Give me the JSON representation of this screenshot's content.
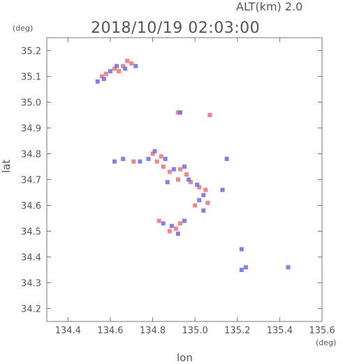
{
  "chart_data": {
    "type": "scatter",
    "altitude_label": "ALT(km)  2.0",
    "title": "2018/10/19 02:03:00",
    "xlabel": "lon",
    "ylabel": "lat",
    "x_unit": "(deg)",
    "y_unit": "(deg)",
    "xlim": [
      134.3,
      135.6
    ],
    "ylim": [
      34.15,
      35.25
    ],
    "xticks": [
      134.4,
      134.6,
      134.8,
      135.0,
      135.2,
      135.4,
      135.6
    ],
    "yticks": [
      34.2,
      34.3,
      34.4,
      34.5,
      34.6,
      34.7,
      34.8,
      34.9,
      35.0,
      35.1,
      35.2
    ],
    "grid": false,
    "series": [
      {
        "color": "#f07070",
        "points": [
          [
            134.56,
            35.1
          ],
          [
            134.58,
            35.11
          ],
          [
            134.62,
            35.13
          ],
          [
            134.66,
            35.14
          ],
          [
            134.68,
            35.16
          ],
          [
            134.7,
            35.15
          ],
          [
            134.64,
            35.12
          ],
          [
            134.71,
            34.77
          ],
          [
            134.8,
            34.8
          ],
          [
            134.82,
            34.77
          ],
          [
            134.85,
            34.75
          ],
          [
            134.88,
            34.73
          ],
          [
            134.93,
            34.74
          ],
          [
            134.96,
            34.72
          ],
          [
            134.98,
            34.69
          ],
          [
            135.02,
            34.67
          ],
          [
            135.05,
            34.66
          ],
          [
            134.92,
            34.7
          ],
          [
            134.84,
            34.79
          ],
          [
            134.83,
            34.54
          ],
          [
            134.88,
            34.5
          ],
          [
            134.91,
            34.51
          ],
          [
            134.93,
            34.53
          ],
          [
            135.06,
            34.61
          ],
          [
            135.0,
            34.6
          ],
          [
            135.07,
            34.95
          ],
          [
            134.92,
            34.96
          ]
        ]
      },
      {
        "color": "#6a6af0",
        "points": [
          [
            134.54,
            35.08
          ],
          [
            134.6,
            35.12
          ],
          [
            134.63,
            35.14
          ],
          [
            134.67,
            35.13
          ],
          [
            134.72,
            35.14
          ],
          [
            134.57,
            35.09
          ],
          [
            134.62,
            34.77
          ],
          [
            134.66,
            34.78
          ],
          [
            134.74,
            34.77
          ],
          [
            134.78,
            34.78
          ],
          [
            134.81,
            34.81
          ],
          [
            134.86,
            34.78
          ],
          [
            134.9,
            34.74
          ],
          [
            134.95,
            34.75
          ],
          [
            134.97,
            34.7
          ],
          [
            135.01,
            34.68
          ],
          [
            135.04,
            34.64
          ],
          [
            134.87,
            34.69
          ],
          [
            134.85,
            34.53
          ],
          [
            134.89,
            34.52
          ],
          [
            134.95,
            34.54
          ],
          [
            134.92,
            34.49
          ],
          [
            135.02,
            34.62
          ],
          [
            135.04,
            34.58
          ],
          [
            135.13,
            34.66
          ],
          [
            135.15,
            34.78
          ],
          [
            134.93,
            34.96
          ],
          [
            135.22,
            34.35
          ],
          [
            135.24,
            34.36
          ],
          [
            135.44,
            34.36
          ],
          [
            135.22,
            34.43
          ]
        ]
      }
    ]
  }
}
